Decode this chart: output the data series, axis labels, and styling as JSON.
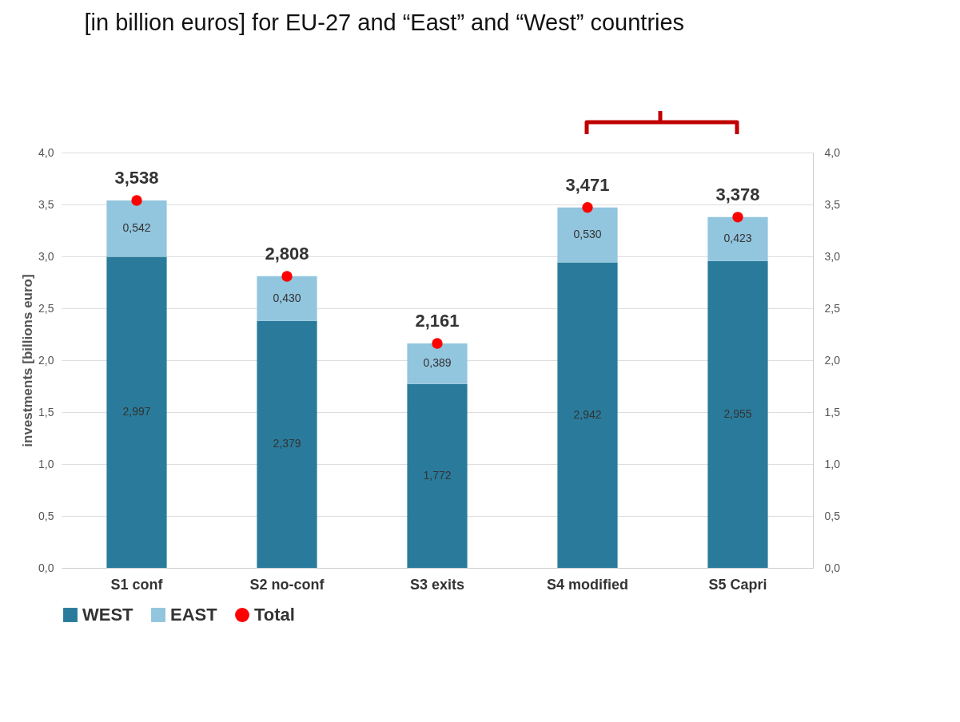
{
  "chart_data": {
    "type": "bar",
    "title": "[in billion euros] for  EU-27 and “East” and “West” countries",
    "ylabel": "investments [billions euro]",
    "categories": [
      "S1 conf",
      "S2 no-conf",
      "S3 exits",
      "S4 modified",
      "S5 Capri"
    ],
    "stacked": true,
    "series": [
      {
        "name": "WEST",
        "color": "#2a7b9b",
        "values": [
          2.997,
          2.379,
          1.772,
          2.942,
          2.955
        ],
        "value_labels": [
          "2,997",
          "2,379",
          "1,772",
          "2,942",
          "2,955"
        ]
      },
      {
        "name": "EAST",
        "color": "#92c5de",
        "values": [
          0.542,
          0.43,
          0.389,
          0.53,
          0.423
        ],
        "value_labels": [
          "0,542",
          "0,430",
          "0,389",
          "0,530",
          "0,423"
        ]
      },
      {
        "name": "Total",
        "type": "scatter",
        "color": "#ff0000",
        "x": [
          "S1 conf",
          "S2 no-conf",
          "S3 exits",
          "S4 modified",
          "S5 Capri"
        ],
        "values": [
          3.538,
          2.808,
          2.161,
          3.471,
          3.378
        ],
        "value_labels": [
          "3,538",
          "2,808",
          "2,161",
          "3,471",
          "3,378"
        ]
      }
    ],
    "ylim": [
      0,
      4
    ],
    "yticks": [
      {
        "value": 0,
        "label": "0,0"
      },
      {
        "value": 0.5,
        "label": "0,5"
      },
      {
        "value": 1,
        "label": "1,0"
      },
      {
        "value": 1.5,
        "label": "1,5"
      },
      {
        "value": 2,
        "label": "2,0"
      },
      {
        "value": 2.5,
        "label": "2,5"
      },
      {
        "value": 3,
        "label": "3,0"
      },
      {
        "value": 3.5,
        "label": "3,5"
      },
      {
        "value": 4,
        "label": "4,0"
      }
    ],
    "y2lim": [
      0,
      4
    ],
    "y2ticks": [
      {
        "value": 0,
        "label": "0,0"
      },
      {
        "value": 0.5,
        "label": "0,5"
      },
      {
        "value": 1,
        "label": "1,0"
      },
      {
        "value": 1.5,
        "label": "1,5"
      },
      {
        "value": 2,
        "label": "2,0"
      },
      {
        "value": 2.5,
        "label": "2,5"
      },
      {
        "value": 3,
        "label": "3,0"
      },
      {
        "value": 3.5,
        "label": "3,5"
      },
      {
        "value": 4,
        "label": "4,0"
      }
    ],
    "grid": "y",
    "legend": "bottom",
    "marker": "circle"
  }
}
